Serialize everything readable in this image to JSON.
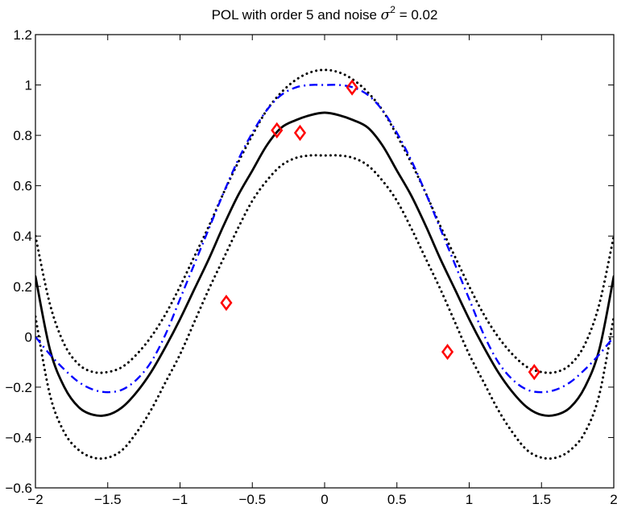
{
  "chart_data": {
    "type": "line",
    "title": {
      "prefix": "POL with order 5 and noise ",
      "sigma": "σ",
      "exponent": "2",
      "suffix": " = 0.02"
    },
    "xlabel": "",
    "ylabel": "",
    "xlim": [
      -2,
      2
    ],
    "ylim": [
      -0.6,
      1.2
    ],
    "xticks": [
      -2,
      -1.5,
      -1,
      -0.5,
      0,
      0.5,
      1,
      1.5,
      2
    ],
    "xtick_labels": [
      "−2",
      "−1.5",
      "−1",
      "−0.5",
      "0",
      "0.5",
      "1",
      "1.5",
      "2"
    ],
    "yticks": [
      -0.6,
      -0.4,
      -0.2,
      0,
      0.2,
      0.4,
      0.6,
      0.8,
      1,
      1.2
    ],
    "ytick_labels": [
      "−0.6",
      "−0.4",
      "−0.2",
      "0",
      "0.2",
      "0.4",
      "0.6",
      "0.8",
      "1",
      "1.2"
    ],
    "grid": false,
    "legend": "none",
    "series": [
      {
        "style": "dotted",
        "color": "#000000",
        "x": [
          -2,
          -1.9,
          -1.8,
          -1.7,
          -1.6,
          -1.5,
          -1.4,
          -1.3,
          -1.2,
          -1.1,
          -1.0,
          -0.9,
          -0.8,
          -0.7,
          -0.6,
          -0.5,
          -0.4,
          -0.3,
          -0.2,
          -0.1,
          0,
          0.1,
          0.2,
          0.3,
          0.4,
          0.5,
          0.6,
          0.7,
          0.8,
          0.9,
          1.0,
          1.1,
          1.2,
          1.3,
          1.4,
          1.5,
          1.6,
          1.7,
          1.8,
          1.9,
          2
        ],
        "y": [
          0.4,
          0.13,
          -0.03,
          -0.11,
          -0.14,
          -0.14,
          -0.12,
          -0.07,
          0.0,
          0.09,
          0.2,
          0.32,
          0.44,
          0.57,
          0.69,
          0.8,
          0.9,
          0.97,
          1.02,
          1.05,
          1.06,
          1.05,
          1.02,
          0.97,
          0.9,
          0.8,
          0.69,
          0.57,
          0.44,
          0.32,
          0.2,
          0.09,
          0.0,
          -0.07,
          -0.12,
          -0.14,
          -0.14,
          -0.11,
          -0.03,
          0.13,
          0.4
        ]
      },
      {
        "style": "solid",
        "color": "#000000",
        "x": [
          -2,
          -1.9,
          -1.8,
          -1.7,
          -1.6,
          -1.5,
          -1.4,
          -1.3,
          -1.2,
          -1.1,
          -1.0,
          -0.9,
          -0.8,
          -0.7,
          -0.6,
          -0.5,
          -0.4,
          -0.3,
          -0.2,
          -0.1,
          0,
          0.1,
          0.2,
          0.3,
          0.4,
          0.5,
          0.6,
          0.7,
          0.8,
          0.9,
          1.0,
          1.1,
          1.2,
          1.3,
          1.4,
          1.5,
          1.6,
          1.7,
          1.8,
          1.9,
          2
        ],
        "y": [
          0.24,
          -0.05,
          -0.2,
          -0.28,
          -0.31,
          -0.31,
          -0.28,
          -0.22,
          -0.14,
          -0.04,
          0.07,
          0.19,
          0.31,
          0.44,
          0.56,
          0.66,
          0.76,
          0.83,
          0.86,
          0.88,
          0.89,
          0.88,
          0.86,
          0.83,
          0.76,
          0.66,
          0.56,
          0.44,
          0.31,
          0.19,
          0.07,
          -0.04,
          -0.14,
          -0.22,
          -0.28,
          -0.31,
          -0.31,
          -0.28,
          -0.2,
          -0.05,
          0.24
        ]
      },
      {
        "style": "dotted",
        "color": "#000000",
        "x": [
          -2,
          -1.9,
          -1.8,
          -1.7,
          -1.6,
          -1.5,
          -1.4,
          -1.3,
          -1.2,
          -1.1,
          -1.0,
          -0.9,
          -0.8,
          -0.7,
          -0.6,
          -0.5,
          -0.4,
          -0.3,
          -0.2,
          -0.1,
          0,
          0.1,
          0.2,
          0.3,
          0.4,
          0.5,
          0.6,
          0.7,
          0.8,
          0.9,
          1.0,
          1.1,
          1.2,
          1.3,
          1.4,
          1.5,
          1.6,
          1.7,
          1.8,
          1.9,
          2
        ],
        "y": [
          0.08,
          -0.23,
          -0.38,
          -0.45,
          -0.48,
          -0.48,
          -0.45,
          -0.38,
          -0.29,
          -0.18,
          -0.07,
          0.06,
          0.19,
          0.31,
          0.43,
          0.54,
          0.62,
          0.68,
          0.71,
          0.72,
          0.72,
          0.72,
          0.71,
          0.68,
          0.62,
          0.54,
          0.43,
          0.31,
          0.19,
          0.06,
          -0.07,
          -0.18,
          -0.29,
          -0.38,
          -0.45,
          -0.48,
          -0.48,
          -0.45,
          -0.38,
          -0.23,
          0.08
        ]
      },
      {
        "style": "dashdot",
        "color": "#0000ff",
        "x": [
          -2,
          -1.9,
          -1.8,
          -1.7,
          -1.6,
          -1.5,
          -1.4,
          -1.3,
          -1.2,
          -1.1,
          -1.0,
          -0.9,
          -0.8,
          -0.7,
          -0.6,
          -0.5,
          -0.4,
          -0.3,
          -0.2,
          -0.1,
          0,
          0.1,
          0.2,
          0.3,
          0.4,
          0.5,
          0.6,
          0.7,
          0.8,
          0.9,
          1.0,
          1.1,
          1.2,
          1.3,
          1.4,
          1.5,
          1.6,
          1.7,
          1.8,
          1.9,
          2
        ],
        "y": [
          0.0,
          -0.07,
          -0.13,
          -0.18,
          -0.21,
          -0.22,
          -0.21,
          -0.17,
          -0.1,
          0.01,
          0.15,
          0.29,
          0.43,
          0.57,
          0.7,
          0.81,
          0.9,
          0.96,
          0.99,
          1.0,
          1.0,
          1.0,
          0.99,
          0.96,
          0.9,
          0.81,
          0.7,
          0.57,
          0.43,
          0.29,
          0.15,
          0.01,
          -0.1,
          -0.17,
          -0.21,
          -0.22,
          -0.21,
          -0.18,
          -0.13,
          -0.07,
          0.0
        ]
      }
    ],
    "points": {
      "marker": "diamond",
      "color": "#ff0000",
      "x": [
        -0.68,
        -0.33,
        -0.17,
        0.19,
        0.85,
        1.45
      ],
      "y": [
        0.135,
        0.82,
        0.81,
        0.99,
        -0.06,
        -0.14
      ]
    }
  }
}
